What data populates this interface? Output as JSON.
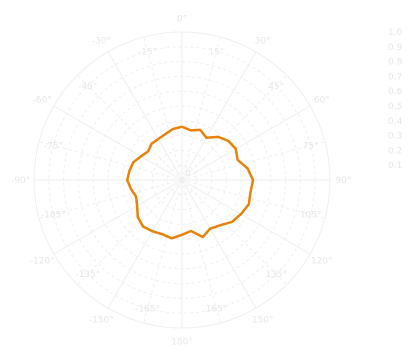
{
  "chart_data": {
    "type": "line",
    "subtype": "polar",
    "direction": "clockwise",
    "zero_angle": "top",
    "angular_axis": {
      "tick_labels": [
        "0°",
        "30°",
        "60°",
        "90°",
        "120°",
        "150°",
        "180°",
        "-150°",
        "-120°",
        "-90°",
        "-60°",
        "-30°"
      ],
      "minor_tick_labels": [
        "15°",
        "45°",
        "75°",
        "105°",
        "135°",
        "165°",
        "-165°",
        "-135°",
        "-105°",
        "-75°",
        "-45°",
        "-15°"
      ]
    },
    "radial_axis": {
      "range": [
        0,
        1
      ],
      "tick_values": [
        0,
        0.1,
        0.2,
        0.3,
        0.4,
        0.5,
        0.6,
        0.7,
        0.8,
        0.9,
        1.0
      ],
      "tick_labels": [
        "0",
        "0.1",
        "0.2",
        "0.3",
        "0.4",
        "0.5",
        "0.6",
        "0.7",
        "0.8",
        "0.9",
        "1.0"
      ]
    },
    "legend": "none",
    "grid": true,
    "series": [
      {
        "color": "#e8820c",
        "theta": [
          0,
          10,
          20,
          30,
          40,
          50,
          60,
          70,
          80,
          90,
          100,
          110,
          120,
          130,
          140,
          150,
          160,
          170,
          180,
          190,
          200,
          210,
          220,
          230,
          240,
          250,
          260,
          270,
          280,
          290,
          300,
          310,
          320,
          330,
          340,
          350
        ],
        "r": [
          0.36,
          0.34,
          0.36,
          0.33,
          0.38,
          0.41,
          0.42,
          0.4,
          0.45,
          0.48,
          0.47,
          0.48,
          0.46,
          0.44,
          0.4,
          0.38,
          0.41,
          0.35,
          0.37,
          0.4,
          0.39,
          0.4,
          0.41,
          0.39,
          0.35,
          0.33,
          0.35,
          0.37,
          0.36,
          0.35,
          0.32,
          0.3,
          0.32,
          0.32,
          0.33,
          0.35
        ]
      }
    ]
  }
}
